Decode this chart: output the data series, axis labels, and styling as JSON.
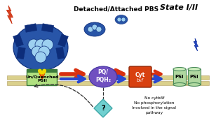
{
  "bg_color": "#ffffff",
  "pbs_label": "Detached/Attached PBS",
  "state_text": "State I/II",
  "psii_label": "Un/Quenched\nPSII",
  "pq_label": "PQ/\nPQH₂",
  "cyt_label1": "Cyt",
  "cyt_label2": "b₆f",
  "psi_label": "PSI",
  "note_text": "No cytb6f\nNo phosphorylation\nInvolved in the signal\npathway",
  "pbs_dark": "#0d2d7a",
  "pbs_mid": "#2855a8",
  "pbs_light": "#6aaceE",
  "pbs_pale": "#9dd0f0",
  "psii_green_dark": "#3a7a3a",
  "psii_green_light": "#b0e080",
  "psii_green_mid": "#80c060",
  "pq_purple": "#7050c0",
  "cyt_red": "#d84010",
  "psi_green_dark": "#4a8a5a",
  "psi_green_light": "#b0d8a0",
  "psi_green_top": "#d0f0c0",
  "arrow_red": "#d83010",
  "arrow_blue": "#2848d0",
  "lightning_red_fill": "#d84020",
  "lightning_red_outline": "#c83010",
  "lightning_blue_fill": "#2848c8",
  "lightning_blue_outline": "#1030a0",
  "diamond_fill": "#70d0d0",
  "diamond_edge": "#40a8a8",
  "membrane_color": "#d4c878",
  "membrane_edge": "#a89050",
  "yellow_arrow": "#f0d800",
  "dashed_color": "#303030"
}
